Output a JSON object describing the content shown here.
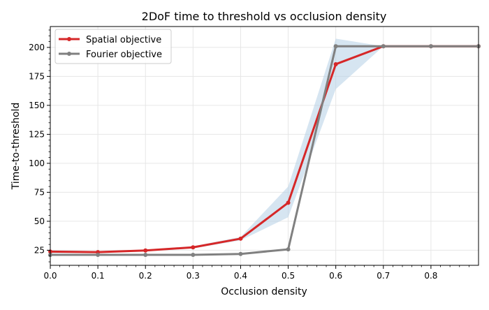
{
  "chart_data": {
    "type": "line",
    "title": "2DoF time to threshold vs occlusion density",
    "xlabel": "Occlusion density",
    "ylabel": "Time-to-threshold",
    "xlim": [
      0.0,
      0.9
    ],
    "ylim": [
      12,
      218
    ],
    "x_ticks": [
      "0.0",
      "0.1",
      "0.2",
      "0.3",
      "0.4",
      "0.5",
      "0.6",
      "0.7",
      "0.8"
    ],
    "y_ticks": [
      "25",
      "50",
      "75",
      "100",
      "125",
      "150",
      "175",
      "200"
    ],
    "grid": true,
    "legend_position": "top-left",
    "x": [
      0.0,
      0.1,
      0.2,
      0.3,
      0.4,
      0.5,
      0.6,
      0.7,
      0.8,
      0.9
    ],
    "series": [
      {
        "name": "Spatial objective",
        "color": "#d62728",
        "values": [
          23.8,
          23.4,
          24.8,
          27.5,
          35.0,
          66.0,
          185.5,
          201.0,
          201.0,
          201.0
        ],
        "band_lower": [
          22.5,
          22.8,
          24.0,
          26.5,
          33.5,
          53.5,
          164.0,
          201.0,
          201.0,
          201.0
        ],
        "band_upper": [
          25.0,
          24.2,
          25.6,
          28.5,
          36.5,
          80.0,
          207.5,
          201.0,
          201.0,
          201.0
        ],
        "band_color": "#b4d0e6"
      },
      {
        "name": "Fourier objective",
        "color": "#808080",
        "values": [
          21.0,
          21.0,
          21.0,
          21.0,
          21.8,
          25.8,
          201.0,
          201.0,
          201.0,
          201.0
        ]
      }
    ]
  }
}
